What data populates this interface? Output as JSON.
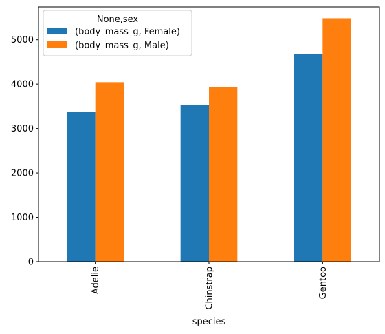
{
  "chart_data": {
    "type": "bar",
    "categories": [
      "Adelie",
      "Chinstrap",
      "Gentoo"
    ],
    "series": [
      {
        "name": "(body_mass_g, Female)",
        "values": [
          3368.8,
          3527.2,
          4679.7
        ],
        "color": "#1f77b4"
      },
      {
        "name": "(body_mass_g, Male)",
        "values": [
          4043.5,
          3939.0,
          5484.8
        ],
        "color": "#ff7f0e"
      }
    ],
    "title": "",
    "xlabel": "species",
    "ylabel": "",
    "ylim": [
      0,
      5740
    ],
    "yticks": [
      0,
      1000,
      2000,
      3000,
      4000,
      5000
    ],
    "legend": {
      "title": "None,sex",
      "placement": "upper-left"
    },
    "grid": false
  }
}
